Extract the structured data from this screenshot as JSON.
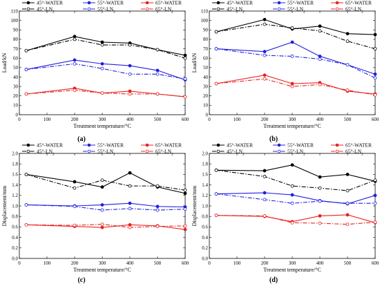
{
  "colors": {
    "black": "#000000",
    "blue": "#1f1fe0",
    "red": "#e8201e"
  },
  "chart_data": [
    {
      "type": "line",
      "panel_label": "(a)",
      "xlabel": "Treatment temperature/°C",
      "ylabel": "Load/kN",
      "xlim": [
        0,
        600
      ],
      "ylim": [
        0,
        110
      ],
      "xticks": [
        0,
        100,
        200,
        300,
        400,
        500,
        600
      ],
      "yticks": [
        0,
        10,
        20,
        30,
        40,
        50,
        60,
        70,
        80,
        90,
        100,
        110
      ],
      "x": [
        25,
        200,
        300,
        400,
        500,
        600
      ],
      "legend_placement": "top",
      "series": [
        {
          "name": "45°-WATER",
          "values": [
            68,
            83,
            77,
            76,
            69,
            63
          ],
          "color": "#000000",
          "style": "solid",
          "marker": "filled"
        },
        {
          "name": "55°-WATER",
          "values": [
            48,
            58,
            54,
            52,
            47,
            37
          ],
          "color": "#1f1fe0",
          "style": "solid",
          "marker": "filled"
        },
        {
          "name": "65°-WATER",
          "values": [
            22,
            28,
            23,
            25,
            22,
            19
          ],
          "color": "#e8201e",
          "style": "solid",
          "marker": "filled"
        },
        {
          "name": "45°-LN2",
          "values": [
            68,
            80,
            74,
            74,
            69,
            60
          ],
          "color": "#000000",
          "style": "dashdot",
          "marker": "open"
        },
        {
          "name": "55°-LN2",
          "values": [
            48,
            54,
            49,
            43,
            43,
            38
          ],
          "color": "#1f1fe0",
          "style": "dashdot",
          "marker": "open"
        },
        {
          "name": "65°-LN2",
          "values": [
            22,
            26,
            23,
            22,
            22,
            19
          ],
          "color": "#e8201e",
          "style": "dashdot",
          "marker": "open"
        }
      ]
    },
    {
      "type": "line",
      "panel_label": "(b)",
      "xlabel": "Treatment temperature/°C",
      "ylabel": "Load/kN",
      "xlim": [
        0,
        600
      ],
      "ylim": [
        0,
        110
      ],
      "xticks": [
        0,
        100,
        200,
        300,
        400,
        500,
        600
      ],
      "yticks": [
        0,
        10,
        20,
        30,
        40,
        50,
        60,
        70,
        80,
        90,
        100,
        110
      ],
      "x": [
        25,
        200,
        300,
        400,
        500,
        600
      ],
      "legend_placement": "top",
      "series": [
        {
          "name": "45°-WATER",
          "values": [
            88,
            101,
            91,
            94,
            86,
            85
          ],
          "color": "#000000",
          "style": "solid",
          "marker": "filled"
        },
        {
          "name": "55°-WATER",
          "values": [
            70,
            67,
            77,
            62,
            53,
            43
          ],
          "color": "#1f1fe0",
          "style": "solid",
          "marker": "filled"
        },
        {
          "name": "65°-WATER",
          "values": [
            33,
            42,
            33,
            34,
            25,
            22
          ],
          "color": "#e8201e",
          "style": "solid",
          "marker": "filled"
        },
        {
          "name": "45°-LN2",
          "values": [
            88,
            96,
            92,
            89,
            78,
            70
          ],
          "color": "#000000",
          "style": "dashdot",
          "marker": "open"
        },
        {
          "name": "55°-LN2",
          "values": [
            70,
            63,
            62,
            59,
            53,
            39
          ],
          "color": "#1f1fe0",
          "style": "dashdot",
          "marker": "open"
        },
        {
          "name": "65°-LN2",
          "values": [
            33,
            38,
            30,
            32,
            26,
            21
          ],
          "color": "#e8201e",
          "style": "dashdot",
          "marker": "open"
        }
      ]
    },
    {
      "type": "line",
      "panel_label": "(c)",
      "xlabel": "Treatment temperature/°C",
      "ylabel": "Displacement/mm",
      "xlim": [
        0,
        600
      ],
      "ylim": [
        0,
        2.0
      ],
      "xticks": [
        0,
        100,
        200,
        300,
        400,
        500,
        600
      ],
      "yticks": [
        0.0,
        0.2,
        0.4,
        0.6,
        0.8,
        1.0,
        1.2,
        1.4,
        1.6,
        1.8,
        2.0
      ],
      "x": [
        25,
        200,
        300,
        400,
        500,
        600
      ],
      "legend_placement": "top",
      "series": [
        {
          "name": "45°-WATER",
          "values": [
            1.6,
            1.46,
            1.36,
            1.63,
            1.36,
            1.24
          ],
          "color": "#000000",
          "style": "solid",
          "marker": "filled"
        },
        {
          "name": "55°-WATER",
          "values": [
            1.02,
            1.0,
            1.02,
            1.05,
            0.99,
            0.98
          ],
          "color": "#1f1fe0",
          "style": "solid",
          "marker": "filled"
        },
        {
          "name": "65°-WATER",
          "values": [
            0.64,
            0.61,
            0.59,
            0.64,
            0.62,
            0.55
          ],
          "color": "#e8201e",
          "style": "solid",
          "marker": "filled"
        },
        {
          "name": "45°-LN2",
          "values": [
            1.6,
            1.34,
            1.49,
            1.38,
            1.38,
            1.3
          ],
          "color": "#000000",
          "style": "dashdot",
          "marker": "open"
        },
        {
          "name": "55°-LN2",
          "values": [
            1.02,
            0.99,
            0.92,
            0.95,
            0.92,
            0.94
          ],
          "color": "#1f1fe0",
          "style": "dashdot",
          "marker": "open"
        },
        {
          "name": "65°-LN2",
          "values": [
            0.64,
            0.63,
            0.65,
            0.59,
            0.61,
            0.62
          ],
          "color": "#e8201e",
          "style": "dashdot",
          "marker": "open"
        }
      ]
    },
    {
      "type": "line",
      "panel_label": "(d)",
      "xlabel": "Treatment temperature/°C",
      "ylabel": "Displacement/mm",
      "xlim": [
        0,
        600
      ],
      "ylim": [
        0,
        2.0
      ],
      "xticks": [
        0,
        100,
        200,
        300,
        400,
        500,
        600
      ],
      "yticks": [
        0.0,
        0.2,
        0.4,
        0.6,
        0.8,
        1.0,
        1.2,
        1.4,
        1.6,
        1.8,
        2.0
      ],
      "x": [
        25,
        200,
        300,
        400,
        500,
        600
      ],
      "legend_placement": "top",
      "series": [
        {
          "name": "45°-WATER",
          "values": [
            1.68,
            1.67,
            1.78,
            1.55,
            1.6,
            1.47
          ],
          "color": "#000000",
          "style": "solid",
          "marker": "filled"
        },
        {
          "name": "55°-WATER",
          "values": [
            1.23,
            1.25,
            1.21,
            1.1,
            1.04,
            1.2
          ],
          "color": "#1f1fe0",
          "style": "solid",
          "marker": "filled"
        },
        {
          "name": "65°-WATER",
          "values": [
            0.82,
            0.8,
            0.7,
            0.81,
            0.83,
            0.68
          ],
          "color": "#e8201e",
          "style": "solid",
          "marker": "filled"
        },
        {
          "name": "45°-LN2",
          "values": [
            1.68,
            1.56,
            1.38,
            1.34,
            1.29,
            1.49
          ],
          "color": "#000000",
          "style": "dashdot",
          "marker": "open"
        },
        {
          "name": "55°-LN2",
          "values": [
            1.23,
            1.12,
            1.05,
            1.09,
            1.05,
            1.05
          ],
          "color": "#1f1fe0",
          "style": "dashdot",
          "marker": "open"
        },
        {
          "name": "65°-LN2",
          "values": [
            0.82,
            0.81,
            0.68,
            0.67,
            0.65,
            0.69
          ],
          "color": "#e8201e",
          "style": "dashdot",
          "marker": "open"
        }
      ]
    }
  ]
}
